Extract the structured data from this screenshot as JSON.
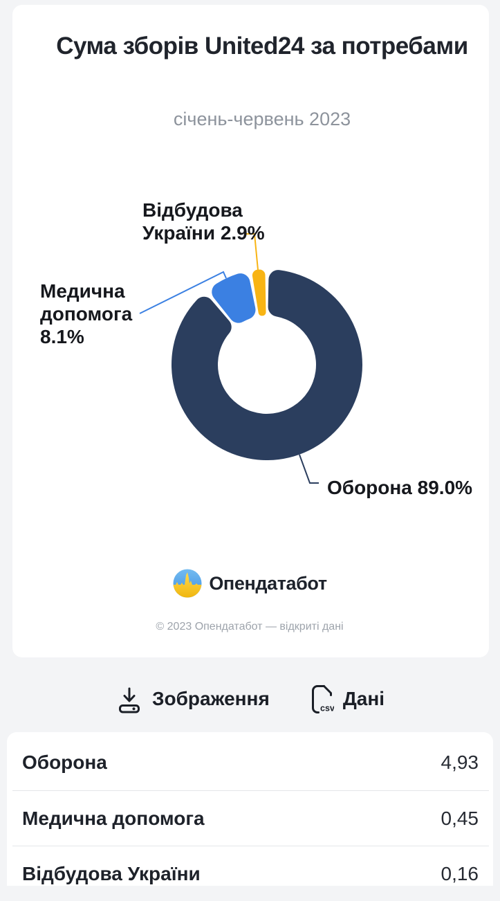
{
  "card": {
    "title": "Сума зборів United24 за потребами",
    "subtitle": "січень-червень 2023",
    "brand": {
      "wordmark": "Опендатабот",
      "logo_icon": "opendatabot-pulse-circle"
    },
    "footer": "© 2023 Опендатабот — відкриті дані"
  },
  "chart_data": {
    "type": "donut",
    "title": "Сума зборів United24 за потребами",
    "period_label": "січень-червень 2023",
    "legend_position": "callout-labels",
    "segments": [
      {
        "label": "Оборона",
        "percent": 89.0,
        "value": 4.93,
        "value_display": "4,93",
        "color": "#2B3E5E"
      },
      {
        "label": "Медична допомога",
        "percent": 8.1,
        "value": 0.45,
        "value_display": "0,45",
        "color": "#3B80E2"
      },
      {
        "label": "Відбудова України",
        "percent": 2.9,
        "value": 0.16,
        "value_display": "0,16",
        "color": "#F8B414"
      }
    ]
  },
  "actions": {
    "image_button": {
      "label": "Зображення",
      "icon": "download-icon"
    },
    "data_button": {
      "label": "Дані",
      "icon": "csv-file-icon"
    }
  },
  "table": {
    "rows": [
      {
        "label": "Оборона",
        "value": "4,93"
      },
      {
        "label": "Медична допомога",
        "value": "0,45"
      },
      {
        "label": "Відбудова України",
        "value": "0,16"
      }
    ]
  },
  "colors": {
    "accent_navy": "#2B3E5E",
    "accent_blue": "#3B80E2",
    "accent_yellow": "#F8B414",
    "page_bg": "#F3F4F6",
    "text_dark": "#20242C",
    "text_gray": "#8D939C"
  }
}
